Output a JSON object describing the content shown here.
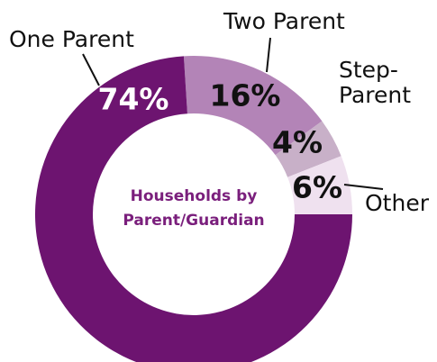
{
  "chart_data": {
    "type": "donut",
    "center_label": "Households by Parent/Guardian",
    "categories": [
      "Two Parent",
      "Step-Parent",
      "Other",
      "One Parent"
    ],
    "values": [
      16,
      4,
      6,
      74
    ],
    "value_labels": [
      "16%",
      "4%",
      "6%",
      "74%"
    ],
    "colors": [
      "#b384b7",
      "#c8b0c8",
      "#efe1ef",
      "#6d1470"
    ]
  }
}
